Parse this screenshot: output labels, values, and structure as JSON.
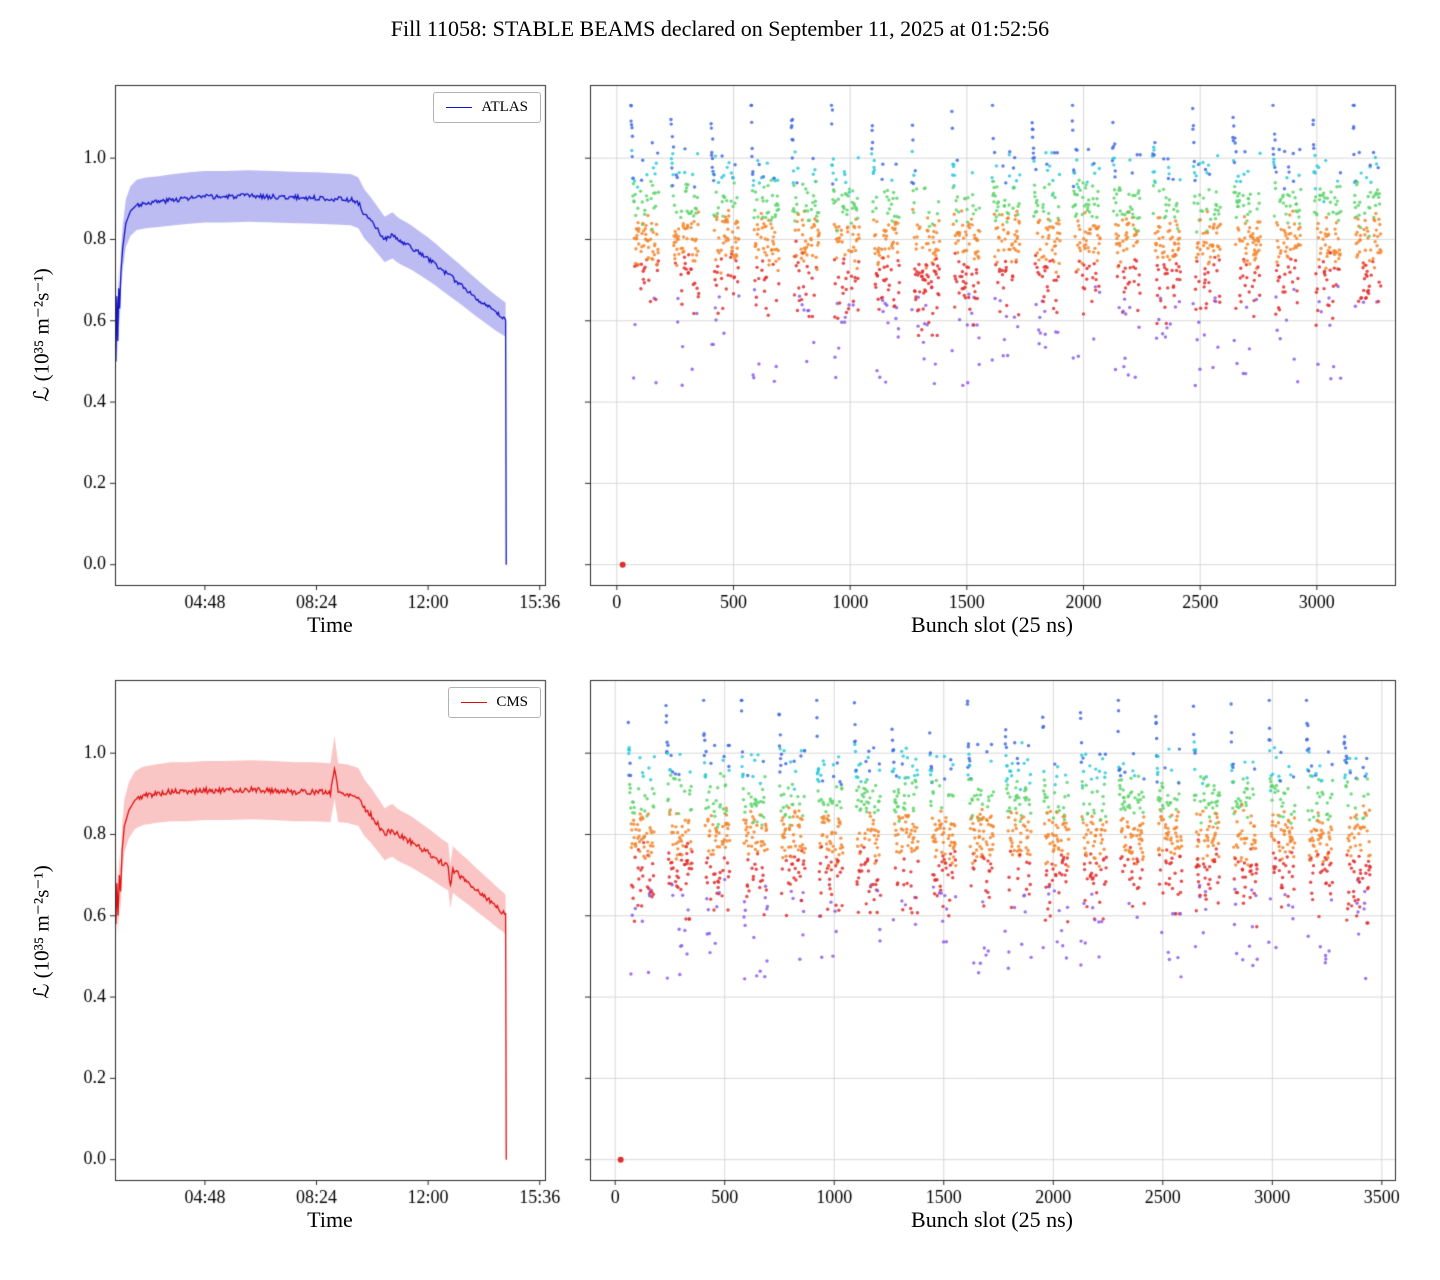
{
  "figure": {
    "title": "Fill 11058: STABLE BEAMS declared on September 11, 2025 at 01:52:56"
  },
  "chart_data": [
    {
      "id": "atlas-lumi-vs-time",
      "type": "line",
      "legend_label": "ATLAS",
      "xlabel": "Time",
      "ylabel": "ℒ (10³⁵ m⁻²s⁻¹)",
      "line_color": "#1414c8",
      "band_color": "rgba(80,80,220,0.38)",
      "band_frac": 0.07,
      "noise": 0.006,
      "seed": 3,
      "grid": false,
      "y_tick_labels": true,
      "x_range": [
        1.9,
        15.77
      ],
      "y_range": [
        -0.05,
        1.18
      ],
      "x_ticks": [
        {
          "label": "04:48",
          "v": 4.8
        },
        {
          "label": "08:24",
          "v": 8.4
        },
        {
          "label": "12:00",
          "v": 12.0
        },
        {
          "label": "15:36",
          "v": 15.6
        }
      ],
      "y_ticks": [
        {
          "label": "0.0",
          "v": 0.0
        },
        {
          "label": "0.2",
          "v": 0.2
        },
        {
          "label": "0.4",
          "v": 0.4
        },
        {
          "label": "0.6",
          "v": 0.6
        },
        {
          "label": "0.8",
          "v": 0.8
        },
        {
          "label": "1.0",
          "v": 1.0
        }
      ],
      "points": [
        [
          1.9,
          0.62
        ],
        [
          1.93,
          0.5
        ],
        [
          1.96,
          0.66
        ],
        [
          1.99,
          0.55
        ],
        [
          2.02,
          0.68
        ],
        [
          2.05,
          0.63
        ],
        [
          2.09,
          0.72
        ],
        [
          2.15,
          0.78
        ],
        [
          2.25,
          0.84
        ],
        [
          2.4,
          0.87
        ],
        [
          2.6,
          0.885
        ],
        [
          2.9,
          0.89
        ],
        [
          3.3,
          0.893
        ],
        [
          3.8,
          0.898
        ],
        [
          4.3,
          0.902
        ],
        [
          4.8,
          0.905
        ],
        [
          5.5,
          0.905
        ],
        [
          6.2,
          0.907
        ],
        [
          7.0,
          0.905
        ],
        [
          7.8,
          0.903
        ],
        [
          8.4,
          0.902
        ],
        [
          9.0,
          0.9
        ],
        [
          9.5,
          0.898
        ],
        [
          9.75,
          0.89
        ],
        [
          9.95,
          0.862
        ],
        [
          10.15,
          0.845
        ],
        [
          10.3,
          0.83
        ],
        [
          10.45,
          0.815
        ],
        [
          10.6,
          0.8
        ],
        [
          10.72,
          0.805
        ],
        [
          10.85,
          0.81
        ],
        [
          11.0,
          0.8
        ],
        [
          11.1,
          0.795
        ],
        [
          11.3,
          0.787
        ],
        [
          11.5,
          0.778
        ],
        [
          11.75,
          0.765
        ],
        [
          12.0,
          0.752
        ],
        [
          12.25,
          0.738
        ],
        [
          12.5,
          0.722
        ],
        [
          12.75,
          0.707
        ],
        [
          13.0,
          0.692
        ],
        [
          13.25,
          0.676
        ],
        [
          13.5,
          0.66
        ],
        [
          13.75,
          0.645
        ],
        [
          14.0,
          0.63
        ],
        [
          14.2,
          0.618
        ],
        [
          14.4,
          0.608
        ],
        [
          14.5,
          0.602
        ],
        [
          14.52,
          0.0
        ]
      ]
    },
    {
      "id": "atlas-lumi-vs-bunch",
      "type": "scatter",
      "xlabel": "Bunch slot (25 ns)",
      "ylabel": "",
      "seed": 7,
      "grid": true,
      "y_tick_labels": false,
      "x_range": [
        -115,
        3335
      ],
      "y_range": [
        -0.05,
        1.18
      ],
      "x_ticks": [
        {
          "label": "0",
          "v": 0
        },
        {
          "label": "500",
          "v": 500
        },
        {
          "label": "1000",
          "v": 1000
        },
        {
          "label": "1500",
          "v": 1500
        },
        {
          "label": "2000",
          "v": 2000
        },
        {
          "label": "2500",
          "v": 2500
        },
        {
          "label": "3000",
          "v": 3000
        }
      ],
      "y_ticks": [
        {
          "label": "0.0",
          "v": 0.0
        },
        {
          "label": "0.2",
          "v": 0.2
        },
        {
          "label": "0.4",
          "v": 0.4
        },
        {
          "label": "0.6",
          "v": 0.6
        },
        {
          "label": "0.8",
          "v": 0.8
        },
        {
          "label": "1.0",
          "v": 1.0
        }
      ],
      "trains": {
        "n": 19,
        "first_slot": 60,
        "period": 172,
        "batches": 3,
        "batch_len": 36,
        "batch_gap": 6
      },
      "value_model": {
        "mean": 0.8,
        "sd": 0.095,
        "head_base": 0.9,
        "head_boost": 0.2,
        "head_decay": 5,
        "head_len": 12,
        "outlier_prob": 0.05,
        "outlier_range": [
          0.44,
          0.66
        ]
      },
      "zero_bunch": {
        "slot": 25,
        "value": 0.0
      },
      "palette": {
        "blue": "#4169e1",
        "cyan": "#2ec9db",
        "green": "#5ed46c",
        "orange": "#f2862e",
        "red": "#e02e2e",
        "purple": "#8a5ce8"
      }
    },
    {
      "id": "cms-lumi-vs-time",
      "type": "line",
      "legend_label": "CMS",
      "xlabel": "Time",
      "ylabel": "ℒ (10³⁵ m⁻²s⁻¹)",
      "line_color": "#e01010",
      "band_color": "rgba(240,80,80,0.33)",
      "band_frac": 0.08,
      "noise": 0.007,
      "seed": 5,
      "grid": false,
      "y_tick_labels": true,
      "x_range": [
        1.9,
        15.77
      ],
      "y_range": [
        -0.05,
        1.18
      ],
      "x_ticks": [
        {
          "label": "04:48",
          "v": 4.8
        },
        {
          "label": "08:24",
          "v": 8.4
        },
        {
          "label": "12:00",
          "v": 12.0
        },
        {
          "label": "15:36",
          "v": 15.6
        }
      ],
      "y_ticks": [
        {
          "label": "0.0",
          "v": 0.0
        },
        {
          "label": "0.2",
          "v": 0.2
        },
        {
          "label": "0.4",
          "v": 0.4
        },
        {
          "label": "0.6",
          "v": 0.6
        },
        {
          "label": "0.8",
          "v": 0.8
        },
        {
          "label": "1.0",
          "v": 1.0
        }
      ],
      "points": [
        [
          1.9,
          0.64
        ],
        [
          1.93,
          0.58
        ],
        [
          1.96,
          0.68
        ],
        [
          2.0,
          0.6
        ],
        [
          2.04,
          0.7
        ],
        [
          2.08,
          0.66
        ],
        [
          2.13,
          0.76
        ],
        [
          2.2,
          0.82
        ],
        [
          2.35,
          0.86
        ],
        [
          2.55,
          0.885
        ],
        [
          2.8,
          0.895
        ],
        [
          3.2,
          0.9
        ],
        [
          3.7,
          0.905
        ],
        [
          4.2,
          0.905
        ],
        [
          4.8,
          0.908
        ],
        [
          5.5,
          0.908
        ],
        [
          6.3,
          0.91
        ],
        [
          7.0,
          0.908
        ],
        [
          7.7,
          0.905
        ],
        [
          8.3,
          0.905
        ],
        [
          8.85,
          0.903
        ],
        [
          8.98,
          0.965
        ],
        [
          9.1,
          0.903
        ],
        [
          9.4,
          0.9
        ],
        [
          9.75,
          0.892
        ],
        [
          9.95,
          0.865
        ],
        [
          10.15,
          0.848
        ],
        [
          10.3,
          0.832
        ],
        [
          10.45,
          0.817
        ],
        [
          10.6,
          0.8
        ],
        [
          10.72,
          0.806
        ],
        [
          10.85,
          0.81
        ],
        [
          11.0,
          0.8
        ],
        [
          11.2,
          0.792
        ],
        [
          11.45,
          0.782
        ],
        [
          11.7,
          0.77
        ],
        [
          11.95,
          0.757
        ],
        [
          12.2,
          0.744
        ],
        [
          12.45,
          0.73
        ],
        [
          12.65,
          0.72
        ],
        [
          12.72,
          0.672
        ],
        [
          12.8,
          0.714
        ],
        [
          13.0,
          0.7
        ],
        [
          13.25,
          0.685
        ],
        [
          13.5,
          0.668
        ],
        [
          13.75,
          0.652
        ],
        [
          14.0,
          0.636
        ],
        [
          14.2,
          0.622
        ],
        [
          14.4,
          0.61
        ],
        [
          14.5,
          0.603
        ],
        [
          14.52,
          0.0
        ]
      ]
    },
    {
      "id": "cms-lumi-vs-bunch",
      "type": "scatter",
      "xlabel": "Bunch slot (25 ns)",
      "ylabel": "",
      "seed": 11,
      "grid": true,
      "y_tick_labels": false,
      "x_range": [
        -115,
        3560
      ],
      "y_range": [
        -0.05,
        1.18
      ],
      "x_ticks": [
        {
          "label": "0",
          "v": 0
        },
        {
          "label": "500",
          "v": 500
        },
        {
          "label": "1000",
          "v": 1000
        },
        {
          "label": "1500",
          "v": 1500
        },
        {
          "label": "2000",
          "v": 2000
        },
        {
          "label": "2500",
          "v": 2500
        },
        {
          "label": "3000",
          "v": 3000
        },
        {
          "label": "3500",
          "v": 3500
        }
      ],
      "y_ticks": [
        {
          "label": "0.0",
          "v": 0.0
        },
        {
          "label": "0.2",
          "v": 0.2
        },
        {
          "label": "0.4",
          "v": 0.4
        },
        {
          "label": "0.6",
          "v": 0.6
        },
        {
          "label": "0.8",
          "v": 0.8
        },
        {
          "label": "1.0",
          "v": 1.0
        }
      ],
      "trains": {
        "n": 20,
        "first_slot": 60,
        "period": 172,
        "batches": 3,
        "batch_len": 36,
        "batch_gap": 6
      },
      "value_model": {
        "mean": 0.8,
        "sd": 0.095,
        "head_base": 0.9,
        "head_boost": 0.2,
        "head_decay": 5,
        "head_len": 12,
        "outlier_prob": 0.05,
        "outlier_range": [
          0.44,
          0.66
        ]
      },
      "zero_bunch": {
        "slot": 25,
        "value": 0.0
      },
      "palette": {
        "blue": "#4169e1",
        "cyan": "#2ec9db",
        "green": "#5ed46c",
        "orange": "#f2862e",
        "red": "#e02e2e",
        "purple": "#8a5ce8"
      }
    }
  ]
}
